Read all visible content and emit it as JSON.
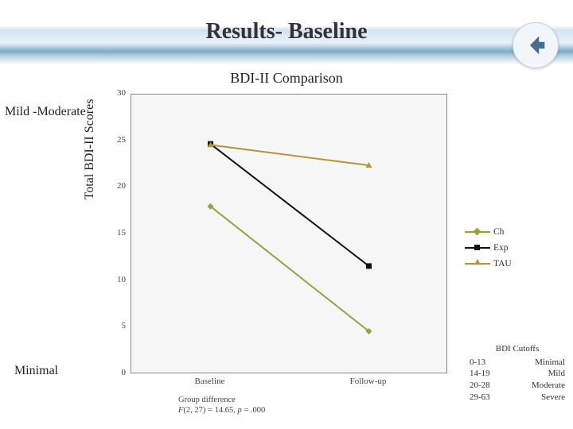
{
  "title": "Results- Baseline",
  "subtitle": "BDI-II Comparison",
  "annotations": {
    "mild_moderate": "Mild -Moderate",
    "minimal": "Minimal"
  },
  "chart": {
    "type": "line",
    "ylabel": "Total  BDI-II Scores",
    "xlabels": [
      "Baseline",
      "Follow-up"
    ],
    "ylim": [
      0,
      30
    ],
    "ytick_step": 5,
    "yticks": [
      0,
      5,
      10,
      15,
      20,
      25,
      30
    ],
    "xpositions": [
      0.25,
      0.75
    ],
    "plot_bg": "#f6f6f6",
    "border_color": "#888888",
    "series": [
      {
        "name": "Ch",
        "color": "#93a43b",
        "values": [
          18.0,
          4.6
        ],
        "marker": "diamond"
      },
      {
        "name": "Exp",
        "color": "#111111",
        "values": [
          24.7,
          11.6
        ],
        "marker": "square"
      },
      {
        "name": "TAU",
        "color": "#b89438",
        "values": [
          24.6,
          22.4
        ],
        "marker": "triangle"
      }
    ],
    "footnote_line1": "Group difference",
    "footnote_stat": "F(2, 27) = 14.65, p = .000",
    "tick_fontsize": 11,
    "ylabel_fontsize": 16
  },
  "legend": {
    "items": [
      {
        "label": "Ch",
        "color": "#93a43b",
        "marker": "diamond"
      },
      {
        "label": "Exp",
        "color": "#111111",
        "marker": "square"
      },
      {
        "label": "TAU",
        "color": "#b89438",
        "marker": "triangle"
      }
    ]
  },
  "cutoffs": {
    "title": "BDI Cutoffs",
    "rows": [
      {
        "range": "0-13",
        "label": "Minimal"
      },
      {
        "range": "14-19",
        "label": "Mild"
      },
      {
        "range": "20-28",
        "label": "Moderate"
      },
      {
        "range": "29-63",
        "label": "Severe"
      }
    ]
  },
  "corner_icon_name": "back-circle-icon"
}
